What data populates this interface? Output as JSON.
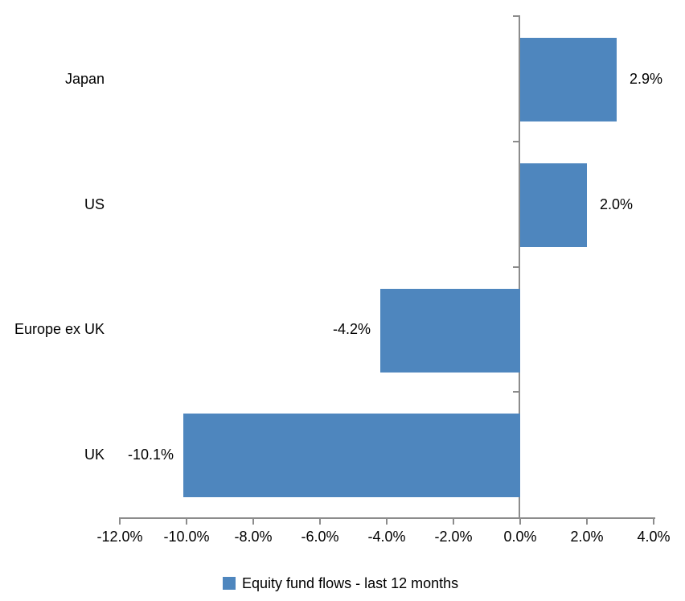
{
  "chart_data": {
    "type": "bar",
    "orientation": "horizontal",
    "title": "",
    "xlabel": "",
    "ylabel": "",
    "categories": [
      "Japan",
      "US",
      "Europe ex UK",
      "UK"
    ],
    "series": [
      {
        "name": "Equity fund flows - last 12 months",
        "values": [
          2.9,
          2.0,
          -4.2,
          -10.1
        ],
        "value_labels": [
          "2.9%",
          "2.0%",
          "-4.2%",
          "-10.1%"
        ]
      }
    ],
    "x_ticks": [
      "-12.0%",
      "-10.0%",
      "-8.0%",
      "-6.0%",
      "-4.0%",
      "-2.0%",
      "0.0%",
      "2.0%",
      "4.0%"
    ],
    "x_tick_values": [
      -12,
      -10,
      -8,
      -6,
      -4,
      -2,
      0,
      2,
      4
    ],
    "xlim": [
      -12,
      4
    ],
    "grid": false,
    "legend_position": "bottom",
    "legend": [
      {
        "label": "Equity fund flows - last 12 months",
        "color": "#4E86BE"
      }
    ],
    "bar_color": "#4E86BE",
    "axis_color": "#8C8C8C",
    "text_color": "#000000"
  }
}
